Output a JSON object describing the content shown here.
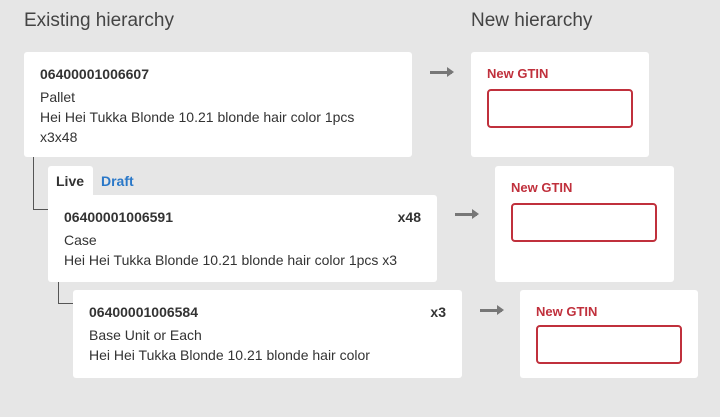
{
  "headers": {
    "existing": "Existing hierarchy",
    "new": "New hierarchy"
  },
  "tabs": [
    {
      "label": "Live",
      "active": true
    },
    {
      "label": "Draft",
      "active": false
    }
  ],
  "items": [
    {
      "gtin": "06400001006607",
      "qty": "",
      "level": "Pallet",
      "name": "Hei Hei Tukka Blonde 10.21 blonde hair color 1pcs x3x48"
    },
    {
      "gtin": "06400001006591",
      "qty": "x48",
      "level": "Case",
      "name": "Hei Hei Tukka Blonde 10.21 blonde hair color 1pcs x3"
    },
    {
      "gtin": "06400001006584",
      "qty": "x3",
      "level": "Base Unit or Each",
      "name": "Hei Hei Tukka Blonde 10.21 blonde hair color"
    }
  ],
  "new_gtin": {
    "label": "New GTIN",
    "value": ""
  },
  "colors": {
    "error": "#c0303c",
    "link": "#2a78c8",
    "background": "#e6e6e6"
  }
}
